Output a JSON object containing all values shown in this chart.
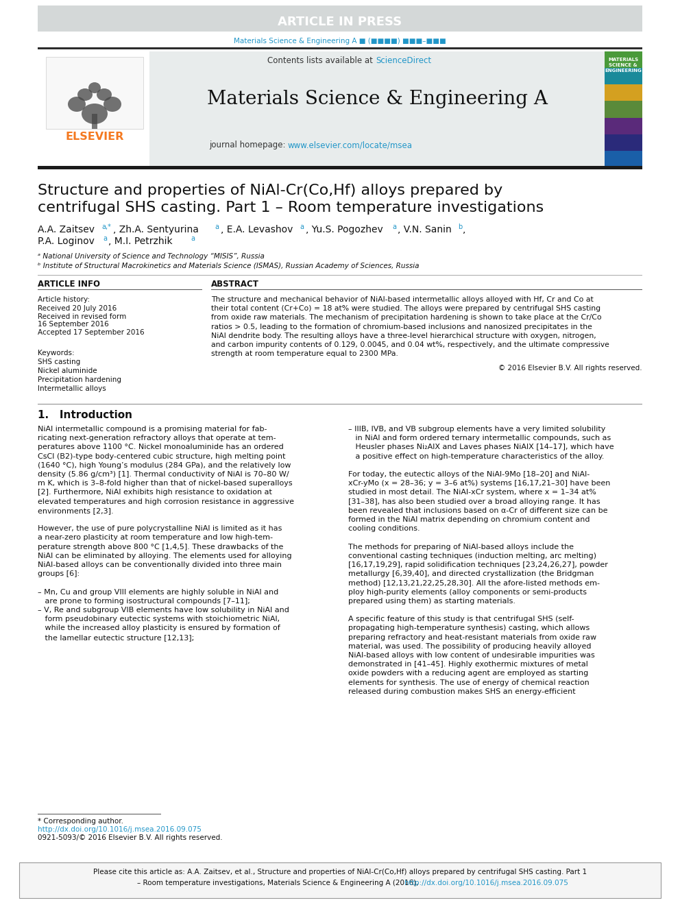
{
  "article_in_press_text": "ARTICLE IN PRESS",
  "article_in_press_bg": "#d4d8d8",
  "article_in_press_color": "#ffffff",
  "journal_ref_text": "Materials Science & Engineering A ■ (■■■■) ■■■–■■■",
  "journal_ref_color": "#2196c8",
  "header_bg": "#e8ecec",
  "header_border_color": "#2c2c2c",
  "contents_text": "Contents lists available at ",
  "sciencedirect_text": "ScienceDirect",
  "sciencedirect_color": "#2196c8",
  "journal_title": "Materials Science & Engineering A",
  "journal_homepage_text": "journal homepage: ",
  "journal_homepage_url": "www.elsevier.com/locate/msea",
  "journal_homepage_url_color": "#2196c8",
  "elsevier_color": "#f47920",
  "article_title_line1": "Structure and properties of NiAl-Cr(Co,Hf) alloys prepared by",
  "article_title_line2": "centrifugal SHS casting. Part 1 – Room temperature investigations",
  "affil_a": "ᵃ National University of Science and Technology “MISIS”, Russia",
  "affil_b": "ᵇ Institute of Structural Macrokinetics and Materials Science (ISMAS), Russian Academy of Sciences, Russia",
  "article_info_title": "ARTICLE INFO",
  "article_history_title": "Article history:",
  "received_text": "Received 20 July 2016",
  "revised_text": "Received in revised form",
  "revised_date": "16 September 2016",
  "accepted_text": "Accepted 17 September 2016",
  "keywords_title": "Keywords:",
  "keyword1": "SHS casting",
  "keyword2": "Nickel aluminide",
  "keyword3": "Precipitation hardening",
  "keyword4": "Intermetallic alloys",
  "abstract_title": "ABSTRACT",
  "abstract_lines": [
    "The structure and mechanical behavior of NiAl-based intermetallic alloys alloyed with Hf, Cr and Co at",
    "their total content (Cr+Co) = 18 at% were studied. The alloys were prepared by centrifugal SHS casting",
    "from oxide raw materials. The mechanism of precipitation hardening is shown to take place at the Cr/Co",
    "ratios > 0.5, leading to the formation of chromium-based inclusions and nanosized precipitates in the",
    "NiAl dendrite body. The resulting alloys have a three-level hierarchical structure with oxygen, nitrogen,",
    "and carbon impurity contents of 0.129, 0.0045, and 0.04 wt%, respectively, and the ultimate compressive",
    "strength at room temperature equal to 2300 MPa."
  ],
  "copyright_text": "© 2016 Elsevier B.V. All rights reserved.",
  "intro_title": "1.   Introduction",
  "footnote_corresponding": "* Corresponding author.",
  "footnote_doi": "http://dx.doi.org/10.1016/j.msea.2016.09.075",
  "footnote_issn": "0921-5093/© 2016 Elsevier B.V. All rights reserved.",
  "cite_text_part1": "Please cite this article as: A.A. Zaitsev, et al., Structure and properties of NiAl-Cr(Co,Hf) alloys prepared by centrifugal SHS casting. Part 1",
  "cite_text_part2": "– Room temperature investigations, Materials Science & Engineering A (2016), ",
  "cite_text_url": "http://dx.doi.org/10.1016/j.msea.2016.09.075",
  "page_bg": "#ffffff",
  "text_color": "#000000",
  "link_color": "#2196c8",
  "intro_col1_lines": [
    "NiAl intermetallic compound is a promising material for fab-",
    "ricating next-generation refractory alloys that operate at tem-",
    "peratures above 1100 °C. Nickel monoaluminide has an ordered",
    "CsCl (B2)-type body-centered cubic structure, high melting point",
    "(1640 °C), high Young’s modulus (284 GPa), and the relatively low",
    "density (5.86 g/cm³) [1]. Thermal conductivity of NiAl is 70–80 W/",
    "m K, which is 3–8-fold higher than that of nickel-based superalloys",
    "[2]. Furthermore, NiAl exhibits high resistance to oxidation at",
    "elevated temperatures and high corrosion resistance in aggressive",
    "environments [2,3].",
    "",
    "However, the use of pure polycrystalline NiAl is limited as it has",
    "a near-zero plasticity at room temperature and low high-tem-",
    "perature strength above 800 °C [1,4,5]. These drawbacks of the",
    "NiAl can be eliminated by alloying. The elements used for alloying",
    "NiAl-based alloys can be conventionally divided into three main",
    "groups [6]:",
    "",
    "– Mn, Cu and group VIII elements are highly soluble in NiAl and",
    "   are prone to forming isostructural compounds [7–11];",
    "– V, Re and subgroup VIB elements have low solubility in NiAl and",
    "   form pseudobinary eutectic systems with stoichiometric NiAl,",
    "   while the increased alloy plasticity is ensured by formation of",
    "   the lamellar eutectic structure [12,13];"
  ],
  "intro_col2_lines": [
    "– IIIB, IVB, and VB subgroup elements have a very limited solubility",
    "   in NiAl and form ordered ternary intermetallic compounds, such as",
    "   Heusler phases Ni₂AlX and Laves phases NiAlX [14–17], which have",
    "   a positive effect on high-temperature characteristics of the alloy.",
    "",
    "For today, the eutectic alloys of the NiAl-9Mo [18–20] and NiAl-",
    "xCr-yMo (x = 28–36; y = 3–6 at%) systems [16,17,21–30] have been",
    "studied in most detail. The NiAl-xCr system, where x = 1–34 at%",
    "[31–38], has also been studied over a broad alloying range. It has",
    "been revealed that inclusions based on α-Cr of different size can be",
    "formed in the NiAl matrix depending on chromium content and",
    "cooling conditions.",
    "",
    "The methods for preparing of NiAl-based alloys include the",
    "conventional casting techniques (induction melting, arc melting)",
    "[16,17,19,29], rapid solidification techniques [23,24,26,27], powder",
    "metallurgy [6,39,40], and directed crystallization (the Bridgman",
    "method) [12,13,21,22,25,28,30]. All the afore-listed methods em-",
    "ploy high-purity elements (alloy components or semi-products",
    "prepared using them) as starting materials.",
    "",
    "A specific feature of this study is that centrifugal SHS (self-",
    "propagating high-temperature synthesis) casting, which allows",
    "preparing refractory and heat-resistant materials from oxide raw",
    "material, was used. The possibility of producing heavily alloyed",
    "NiAl-based alloys with low content of undesirable impurities was",
    "demonstrated in [41–45]. Highly exothermic mixtures of metal",
    "oxide powders with a reducing agent are employed as starting",
    "elements for synthesis. The use of energy of chemical reaction",
    "released during combustion makes SHS an energy-efficient"
  ]
}
